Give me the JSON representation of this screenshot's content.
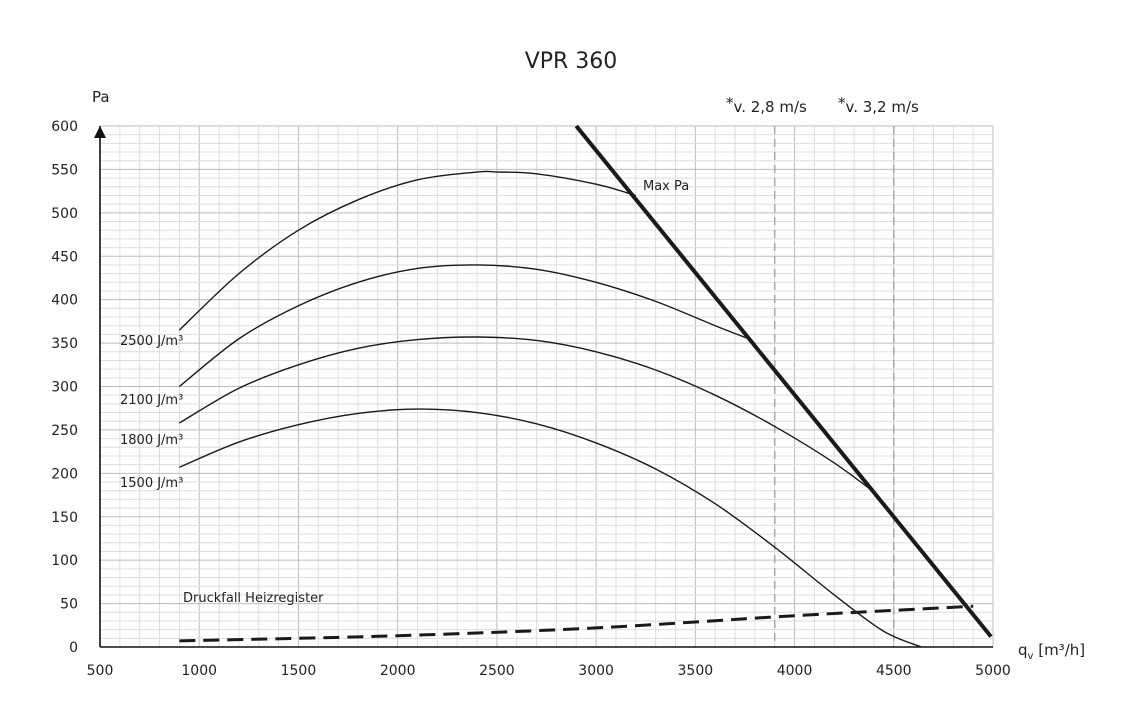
{
  "chart_data": {
    "type": "line",
    "title": "VPR 360",
    "ylabel": "Pa",
    "xlabel_main": "q",
    "xlabel_sub": "v",
    "xlabel_unit": " [m³/h]",
    "xlim": [
      500,
      5000
    ],
    "ylim": [
      0,
      600
    ],
    "x_ticks": [
      500,
      1000,
      1500,
      2000,
      2500,
      3000,
      3500,
      4000,
      4500,
      5000
    ],
    "y_ticks": [
      0,
      50,
      100,
      150,
      200,
      250,
      300,
      350,
      400,
      450,
      500,
      550,
      600
    ],
    "grid": true,
    "series": [
      {
        "name": "2500 J/m³",
        "style": "thin",
        "x": [
          900,
          1200,
          1500,
          1800,
          2100,
          2400,
          2500,
          2700,
          3000,
          3200
        ],
        "y": [
          365,
          430,
          480,
          515,
          538,
          547,
          547,
          545,
          533,
          520
        ]
      },
      {
        "name": "2100 J/m³",
        "style": "thin",
        "x": [
          900,
          1200,
          1500,
          1800,
          2100,
          2400,
          2700,
          3000,
          3300,
          3600,
          3780
        ],
        "y": [
          300,
          355,
          393,
          420,
          436,
          440,
          435,
          420,
          398,
          370,
          354
        ]
      },
      {
        "name": "1800 J/m³",
        "style": "thin",
        "x": [
          900,
          1200,
          1500,
          1800,
          2100,
          2400,
          2700,
          3000,
          3300,
          3600,
          3900,
          4200,
          4420
        ],
        "y": [
          258,
          298,
          325,
          344,
          354,
          357,
          353,
          340,
          319,
          290,
          254,
          212,
          175
        ]
      },
      {
        "name": "1500 J/m³",
        "style": "thin",
        "x": [
          900,
          1200,
          1500,
          1800,
          2100,
          2400,
          2700,
          3000,
          3300,
          3600,
          3900,
          4200,
          4450,
          4640
        ],
        "y": [
          207,
          236,
          256,
          269,
          274,
          270,
          257,
          235,
          205,
          165,
          115,
          60,
          18,
          0
        ]
      },
      {
        "name": "Max Pa",
        "style": "thick",
        "x": [
          2900,
          4990
        ],
        "y": [
          600,
          12
        ]
      },
      {
        "name": "Druckfall Heizregister",
        "style": "dashed",
        "x": [
          900,
          2000,
          3000,
          4000,
          4900
        ],
        "y": [
          7,
          13,
          22,
          36,
          47
        ]
      }
    ],
    "velocity_lines": [
      {
        "label": "v. 2,8 m/s",
        "star": "*",
        "x": 3900
      },
      {
        "label": "v. 3,2 m/s",
        "star": "*",
        "x": 4500
      }
    ],
    "labels": {
      "max_pa": "Max Pa",
      "druckfall": "Druckfall Heizregister",
      "c2500": "2500 J/m³",
      "c2100": "2100 J/m³",
      "c1800": "1800 J/m³",
      "c1500": "1500 J/m³"
    }
  }
}
